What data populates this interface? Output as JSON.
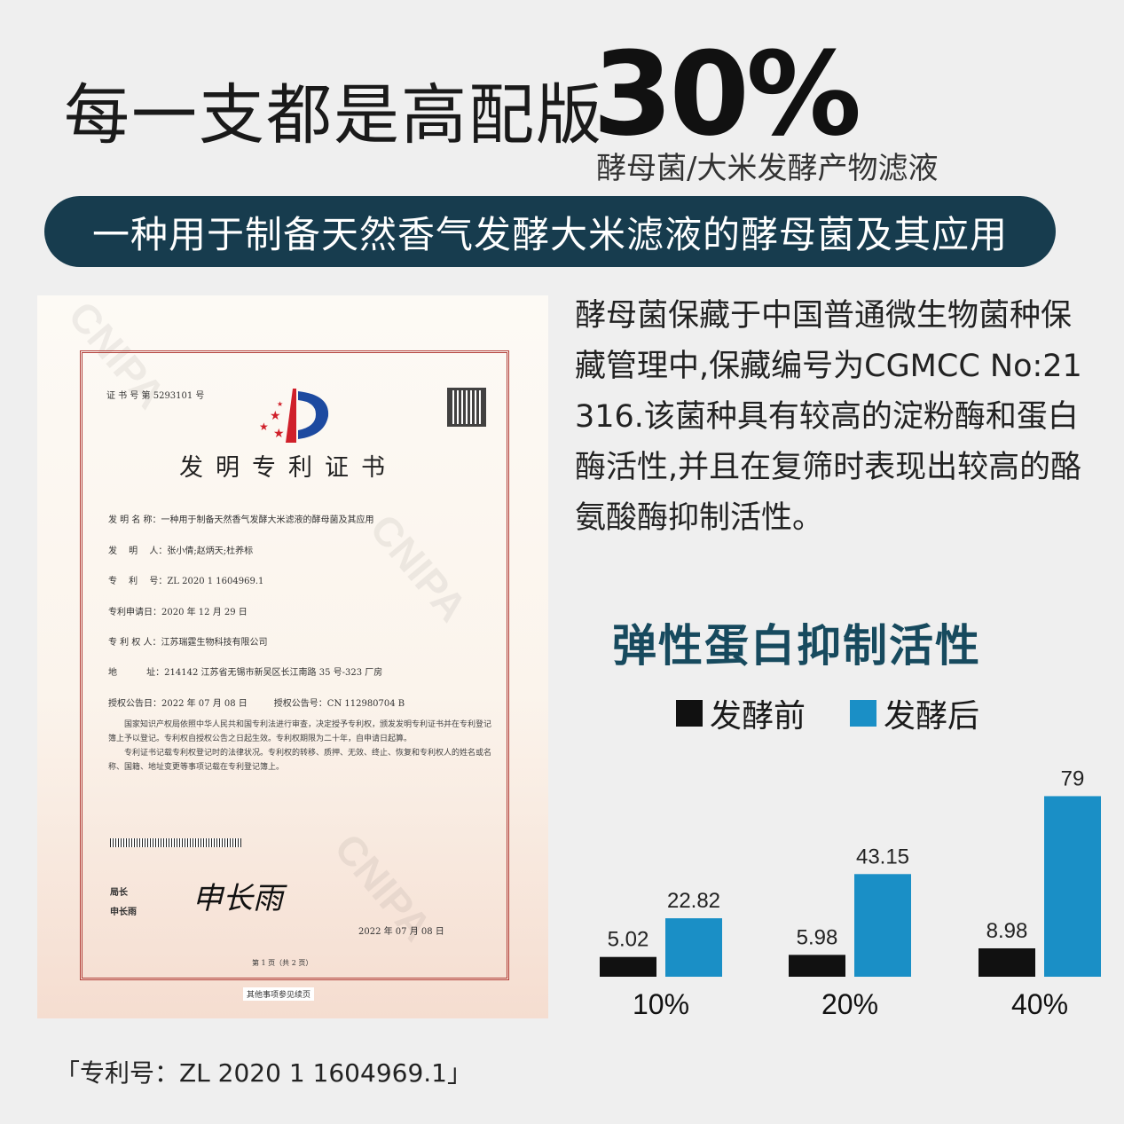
{
  "headline": {
    "text": "每一支都是高配版",
    "percent": "30%",
    "subtitle": "酵母菌/大米发酵产物滤液"
  },
  "banner": "一种用于制备天然香气发酵大米滤液的酵母菌及其应用",
  "description": "酵母菌保藏于中国普通微生物菌种保藏管理中,保藏编号为CGMCC No:21316.该菌种具有较高的淀粉酶和蛋白酶活性,并且在复筛时表现出较高的酪氨酸酶抑制活性。",
  "certificate": {
    "cert_no": "证 书 号 第 5293101 号",
    "title": "发明专利证书",
    "watermark": "CNIPA",
    "fields": [
      "发 明 名 称：一种用于制备天然香气发酵大米滤液的酵母菌及其应用",
      "发　 明　 人：张小倩;赵炳天;杜养标",
      "专　 利　 号：ZL 2020 1 1604969.1",
      "专利申请日：2020 年 12 月 29 日",
      "专 利 权 人：江苏瑞霆生物科技有限公司",
      "地　　　 址：214142 江苏省无锡市新吴区长江南路 35 号-323 厂房",
      "授权公告日：2022 年 07 月 08 日　　　授权公告号：CN 112980704 B"
    ],
    "paragraph1": "国家知识产权局依照中华人民共和国专利法进行审查，决定授予专利权，颁发发明专利证书并在专利登记簿上予以登记。专利权自授权公告之日起生效。专利权期限为二十年，自申请日起算。",
    "paragraph2": "专利证书记载专利权登记时的法律状况。专利权的转移、质押、无效、终止、恢复和专利权人的姓名或名称、国籍、地址变更等事项记载在专利登记簿上。",
    "signer_title": "局长",
    "signer_name": "申长雨",
    "signature": "申长雨",
    "sign_date": "2022 年 07 月 08 日",
    "page": "第 1 页（共 2 页）",
    "footer": "其他事项参见续页"
  },
  "patent_caption": "「专利号：ZL 2020 1 1604969.1」",
  "chart_data": {
    "type": "bar",
    "title": "弹性蛋白抑制活性",
    "categories": [
      "10%",
      "20%",
      "40%"
    ],
    "series": [
      {
        "name": "发酵前",
        "color": "#111111",
        "values": [
          5.02,
          5.98,
          8.98
        ]
      },
      {
        "name": "发酵后",
        "color": "#1a8fc6",
        "values": [
          22.82,
          43.15,
          79
        ]
      }
    ],
    "legend": "top",
    "grid": false
  }
}
